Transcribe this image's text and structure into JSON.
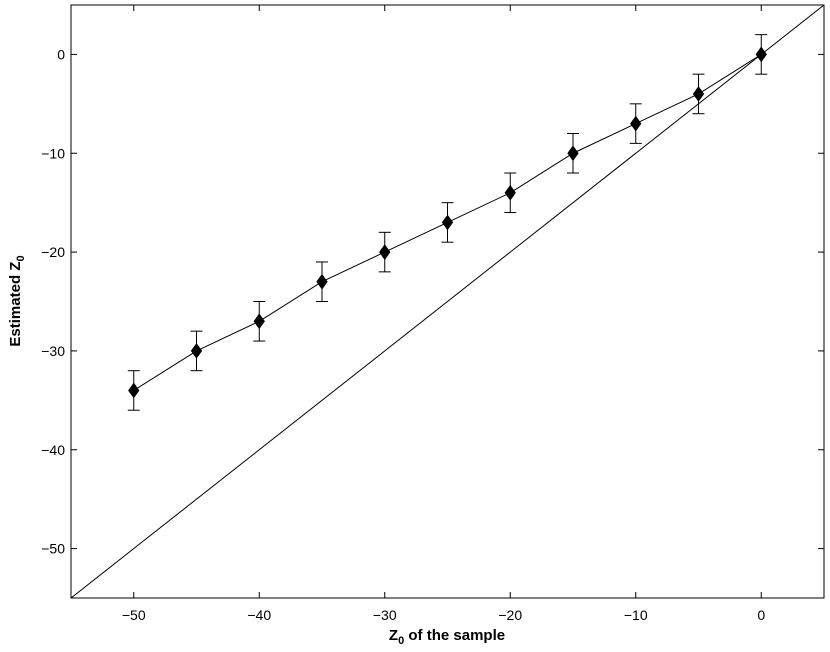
{
  "chart_data": {
    "type": "scatter",
    "xlabel": "Z",
    "xlabel_sub": "0",
    "xlabel_rest": " of the sample",
    "ylabel": "Estimated Z",
    "ylabel_sub": "0",
    "xlim": [
      -55,
      5
    ],
    "ylim": [
      -55,
      5
    ],
    "x_ticks": [
      -50,
      -40,
      -30,
      -20,
      -10,
      0
    ],
    "y_ticks": [
      0,
      -10,
      -20,
      -30,
      -40,
      -50
    ],
    "x_tick_labels": [
      "−50",
      "−40",
      "−30",
      "−20",
      "−10",
      "0"
    ],
    "y_tick_labels": [
      "0",
      "−10",
      "−20",
      "−30",
      "−40",
      "−50"
    ],
    "grid": false,
    "legend": "none",
    "marker": "diamond",
    "series": [
      {
        "x": [
          -50,
          -45,
          -40,
          -35,
          -30,
          -25,
          -20,
          -15,
          -10,
          -5,
          0
        ],
        "y": [
          -34,
          -30,
          -27,
          -23,
          -20,
          -17,
          -14,
          -10,
          -7,
          -4,
          0
        ],
        "error": [
          2,
          2,
          2,
          2,
          2,
          2,
          2,
          2,
          2,
          2,
          2
        ]
      }
    ],
    "reference_line": {
      "from": [
        -55,
        -55
      ],
      "to": [
        5,
        5
      ]
    }
  }
}
